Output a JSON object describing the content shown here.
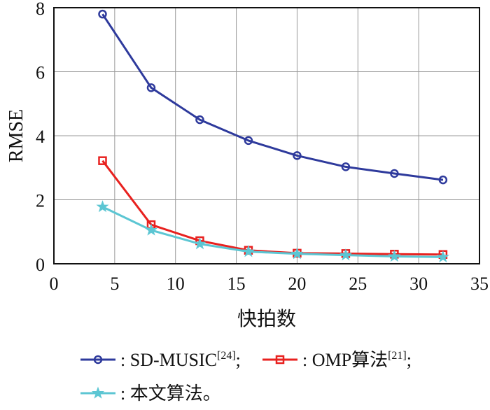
{
  "chart_data": {
    "type": "line",
    "title": "",
    "xlabel": "快拍数",
    "ylabel": "RMSE",
    "xlim": [
      0,
      35
    ],
    "ylim": [
      0,
      8
    ],
    "xticks": [
      "0",
      "5",
      "10",
      "15",
      "20",
      "25",
      "30",
      "35"
    ],
    "yticks": [
      "0",
      "2",
      "4",
      "6",
      "8"
    ],
    "grid": true,
    "legend_position": "bottom",
    "x": [
      4,
      8,
      12,
      16,
      20,
      24,
      28,
      32
    ],
    "series": [
      {
        "name": "SD-MUSIC",
        "ref": "[24]",
        "suffix": ";",
        "marker": "circle",
        "color": "#2e3a9c",
        "values": [
          7.8,
          5.5,
          4.5,
          3.85,
          3.38,
          3.03,
          2.82,
          2.62
        ]
      },
      {
        "name": "OMP算法",
        "ref": "[21]",
        "suffix": ";",
        "marker": "square",
        "color": "#e8211f",
        "values": [
          3.22,
          1.22,
          0.72,
          0.42,
          0.33,
          0.32,
          0.3,
          0.29
        ]
      },
      {
        "name": "本文算法",
        "ref": "",
        "suffix": "。",
        "marker": "star",
        "color": "#5cc6d3",
        "values": [
          1.78,
          1.05,
          0.62,
          0.38,
          0.31,
          0.27,
          0.23,
          0.21
        ]
      }
    ],
    "legend_separator": ": "
  }
}
